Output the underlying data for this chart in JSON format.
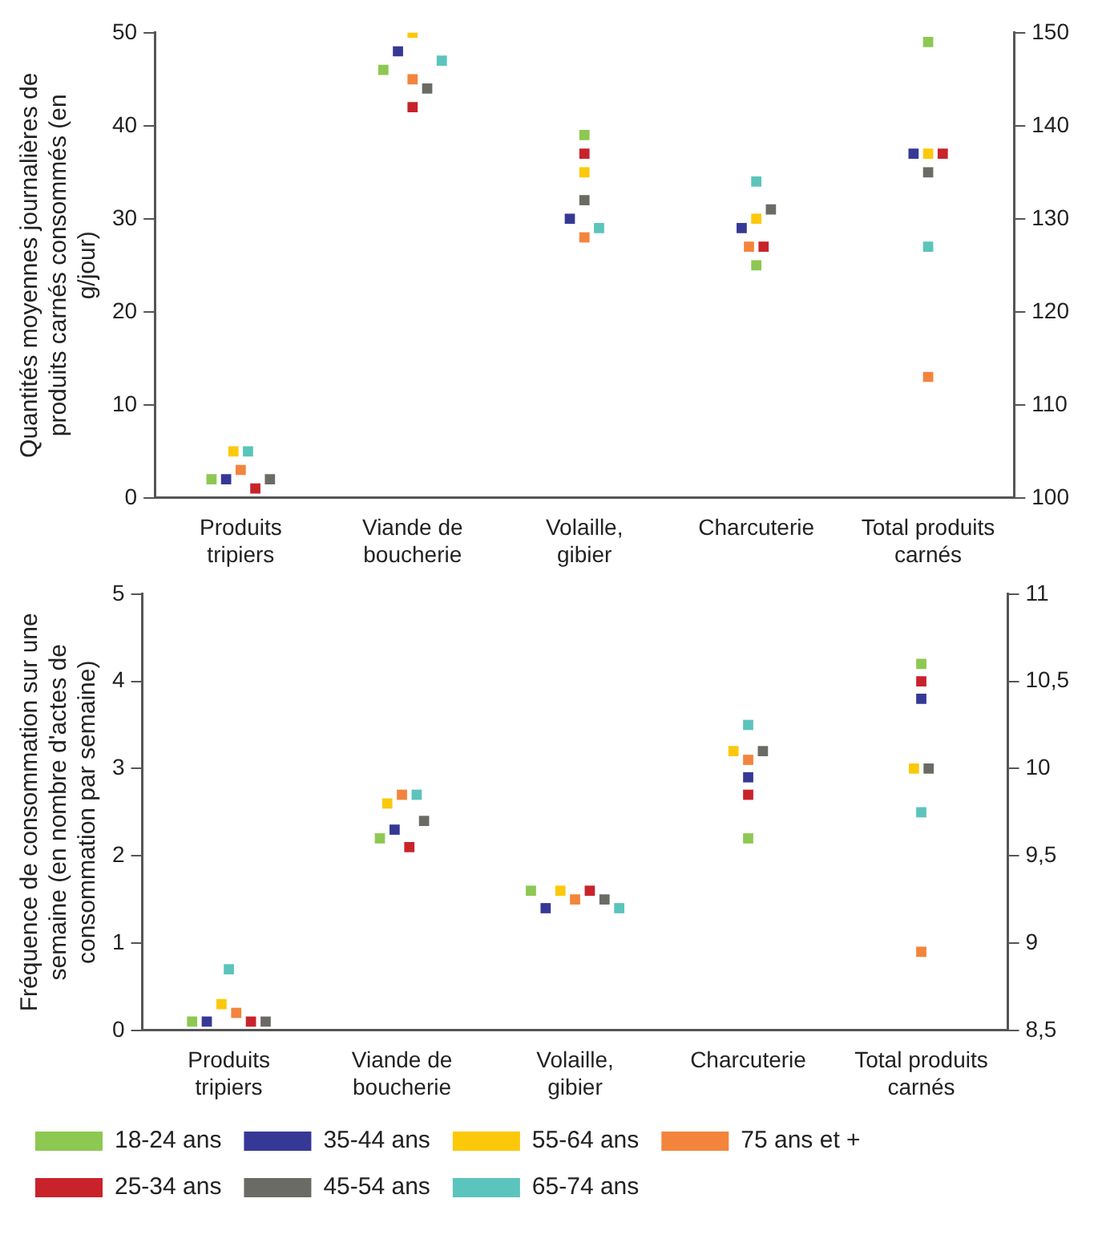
{
  "chart_data": [
    {
      "type": "scatter",
      "marker": "square",
      "ylabel": "Quantités moyennes journalières de produits carnés consommés (en g/jour)",
      "categories": [
        "Produits tripiers",
        "Viande de boucherie",
        "Volaille, gibier",
        "Charcuterie",
        "Total produits carnés"
      ],
      "ylim": [
        0,
        50
      ],
      "yticks": [
        0,
        10,
        20,
        30,
        40,
        50
      ],
      "y2lim": [
        100,
        150
      ],
      "y2ticks": [
        100,
        110,
        120,
        130,
        140,
        150
      ],
      "series": [
        {
          "color": "#8dc852",
          "values": [
            2,
            46,
            39,
            25,
            null
          ]
        },
        {
          "color": "#363896",
          "values": [
            2,
            48,
            30,
            29,
            null
          ]
        },
        {
          "color": "#fcc80a",
          "values": [
            5,
            50,
            35,
            30,
            null
          ]
        },
        {
          "color": "#f3843c",
          "values": [
            3,
            45,
            28,
            27,
            null
          ]
        },
        {
          "color": "#c8232b",
          "values": [
            1,
            42,
            37,
            27,
            null
          ]
        },
        {
          "color": "#6b6b66",
          "values": [
            2,
            44,
            32,
            31,
            null
          ]
        },
        {
          "color": "#5bc4bc",
          "values": [
            5,
            47,
            29,
            34,
            null
          ]
        },
        {
          "color": "#8dc852",
          "axis": "y2",
          "values": [
            null,
            null,
            null,
            null,
            149
          ]
        },
        {
          "color": "#363896",
          "axis": "y2",
          "values": [
            null,
            null,
            null,
            null,
            137
          ]
        },
        {
          "color": "#fcc80a",
          "axis": "y2",
          "values": [
            null,
            null,
            null,
            null,
            137
          ]
        },
        {
          "color": "#f3843c",
          "axis": "y2",
          "values": [
            null,
            null,
            null,
            null,
            113
          ]
        },
        {
          "color": "#c8232b",
          "axis": "y2",
          "values": [
            null,
            null,
            null,
            null,
            137
          ]
        },
        {
          "color": "#6b6b66",
          "axis": "y2",
          "values": [
            null,
            null,
            null,
            null,
            135
          ]
        },
        {
          "color": "#5bc4bc",
          "axis": "y2",
          "values": [
            null,
            null,
            null,
            null,
            127
          ]
        }
      ]
    },
    {
      "type": "scatter",
      "marker": "square",
      "legend": "bottom",
      "ylabel": "Fréquence de consommation sur une semaine (en nombre d'actes de consommation par semaine)",
      "categories": [
        "Produits tripiers",
        "Viande de boucherie",
        "Volaille, gibier",
        "Charcuterie",
        "Total produits carnés"
      ],
      "ylim": [
        0,
        5
      ],
      "yticks": [
        0,
        1,
        2,
        3,
        4,
        5
      ],
      "y2lim": [
        8.5,
        11
      ],
      "y2ticks": [
        {
          "value": 8.5,
          "label": "8,5"
        },
        9,
        {
          "value": 9.5,
          "label": "9,5"
        },
        10,
        {
          "value": 10.5,
          "label": "10,5"
        },
        11
      ],
      "series": [
        {
          "name": "18-24 ans",
          "color": "#8dc852",
          "values": [
            0.1,
            2.2,
            1.6,
            2.2,
            null
          ]
        },
        {
          "name": "35-44 ans",
          "color": "#363896",
          "values": [
            0.1,
            2.3,
            1.4,
            2.9,
            null
          ]
        },
        {
          "name": "55-64 ans",
          "color": "#fcc80a",
          "values": [
            0.3,
            2.6,
            1.6,
            3.2,
            null
          ]
        },
        {
          "name": "75 ans et +",
          "color": "#f3843c",
          "values": [
            0.2,
            2.7,
            1.5,
            3.1,
            null
          ]
        },
        {
          "name": "25-34 ans",
          "color": "#c8232b",
          "values": [
            0.1,
            2.1,
            1.6,
            2.7,
            null
          ]
        },
        {
          "name": "45-54 ans",
          "color": "#6b6b66",
          "values": [
            0.1,
            2.4,
            1.5,
            3.2,
            null
          ]
        },
        {
          "name": "65-74 ans",
          "color": "#5bc4bc",
          "values": [
            0.7,
            2.7,
            1.4,
            3.5,
            null
          ]
        },
        {
          "color": "#8dc852",
          "axis": "y2",
          "values": [
            null,
            null,
            null,
            null,
            10.6
          ]
        },
        {
          "color": "#363896",
          "axis": "y2",
          "values": [
            null,
            null,
            null,
            null,
            10.4
          ]
        },
        {
          "color": "#fcc80a",
          "axis": "y2",
          "values": [
            null,
            null,
            null,
            null,
            10
          ]
        },
        {
          "color": "#f3843c",
          "axis": "y2",
          "values": [
            null,
            null,
            null,
            null,
            8.95
          ]
        },
        {
          "color": "#c8232b",
          "axis": "y2",
          "values": [
            null,
            null,
            null,
            null,
            10.5
          ]
        },
        {
          "color": "#6b6b66",
          "axis": "y2",
          "values": [
            null,
            null,
            null,
            null,
            10
          ]
        },
        {
          "color": "#5bc4bc",
          "axis": "y2",
          "values": [
            null,
            null,
            null,
            null,
            9.75
          ]
        }
      ]
    }
  ]
}
